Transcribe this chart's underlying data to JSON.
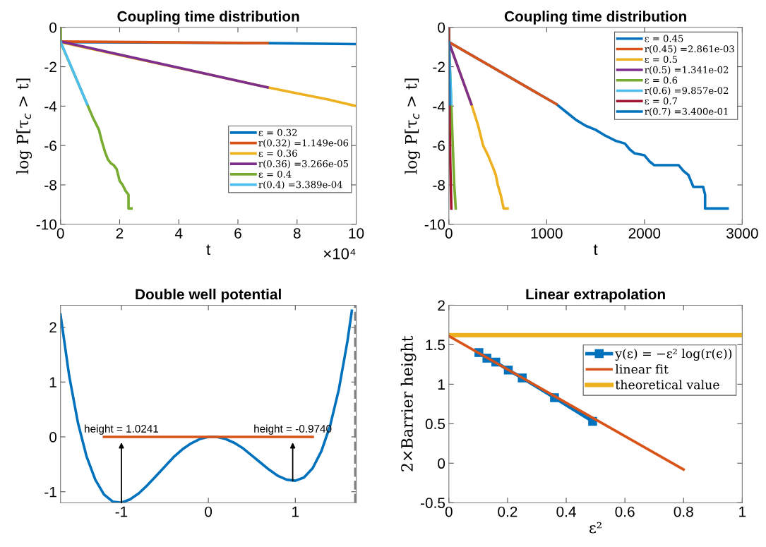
{
  "chart_data": [
    {
      "type": "line",
      "title": "Coupling time distribution",
      "xlabel": "t",
      "ylabel": "log P[τ$_{c}$ > t]",
      "annotations": [
        "×10⁴"
      ],
      "xlim": [
        0,
        10
      ],
      "xticks": [
        0,
        2,
        4,
        6,
        8,
        10
      ],
      "ylim": [
        -10,
        0
      ],
      "yticks": [
        -10,
        -8,
        -6,
        -4,
        -2,
        0
      ],
      "grid": false,
      "legend": "right",
      "line_style": "solid",
      "marker": "none",
      "series": [
        {
          "name": "ε = 0.32",
          "color": "#0072bd",
          "x": [
            0,
            0,
            7,
            10
          ],
          "values": [
            0,
            -0.75,
            -0.8,
            -0.85
          ]
        },
        {
          "name": "r(0.32) =1.149e-06",
          "color": "#d95319",
          "x": [
            0,
            7
          ],
          "values": [
            -0.72,
            -0.8
          ]
        },
        {
          "name": "ε = 0.36",
          "color": "#edb120",
          "x": [
            0,
            0,
            7,
            8,
            9,
            10
          ],
          "values": [
            0,
            -0.75,
            -3.05,
            -3.35,
            -3.65,
            -4.0
          ]
        },
        {
          "name": "r(0.36) =3.266e-05",
          "color": "#7e2f8e",
          "x": [
            0,
            7
          ],
          "values": [
            -0.72,
            -3.05
          ]
        },
        {
          "name": "ε = 0.4",
          "color": "#77ac30",
          "x": [
            0,
            0,
            0.9,
            1.1,
            1.3,
            1.4,
            1.5,
            1.6,
            1.7,
            1.8,
            1.9,
            2.0,
            2.1,
            2.2,
            2.3,
            2.3,
            2.4
          ],
          "values": [
            0,
            -0.75,
            -3.9,
            -4.6,
            -5.2,
            -5.8,
            -6.3,
            -6.7,
            -6.9,
            -7.0,
            -7.2,
            -7.8,
            -8.0,
            -8.3,
            -8.5,
            -9.2,
            -9.2
          ]
        },
        {
          "name": "r(0.4) =3.389e-04",
          "color": "#4dbeee",
          "x": [
            0,
            0.9
          ],
          "values": [
            -0.72,
            -3.9
          ]
        }
      ]
    },
    {
      "type": "line",
      "title": "Coupling time distribution",
      "xlabel": "t",
      "ylabel": "log P[τ$_{c}$ > t]",
      "xlim": [
        0,
        3000
      ],
      "xticks": [
        0,
        1000,
        2000,
        3000
      ],
      "ylim": [
        -10,
        0
      ],
      "yticks": [
        -10,
        -8,
        -6,
        -4,
        -2,
        0
      ],
      "grid": false,
      "legend": "top right",
      "line_style": "solid",
      "marker": "none",
      "series": [
        {
          "name": "ε = 0.45",
          "color": "#0072bd",
          "x": [
            0,
            0,
            1100,
            1200,
            1300,
            1400,
            1500,
            1600,
            1700,
            1800,
            1850,
            1900,
            2000,
            2050,
            2100,
            2350,
            2400,
            2450,
            2500,
            2600,
            2620,
            2620,
            2850
          ],
          "values": [
            0,
            -0.75,
            -3.9,
            -4.3,
            -4.7,
            -5.0,
            -5.2,
            -5.5,
            -5.75,
            -5.9,
            -6.2,
            -6.4,
            -6.5,
            -6.8,
            -7.0,
            -7.0,
            -7.3,
            -7.5,
            -8.1,
            -8.1,
            -8.5,
            -9.2,
            -9.2
          ]
        },
        {
          "name": "r(0.45) =2.861e-03",
          "color": "#d95319",
          "x": [
            0,
            1100
          ],
          "values": [
            -0.75,
            -3.9
          ]
        },
        {
          "name": "ε = 0.5",
          "color": "#edb120",
          "x": [
            0,
            0,
            230,
            300,
            350,
            400,
            450,
            480,
            500,
            530,
            560,
            600
          ],
          "values": [
            0,
            -0.75,
            -3.9,
            -5.0,
            -6.0,
            -6.5,
            -7.1,
            -7.5,
            -8.0,
            -8.5,
            -9.2,
            -9.2
          ]
        },
        {
          "name": "r(0.5) =1.341e-02",
          "color": "#7e2f8e",
          "x": [
            0,
            230
          ],
          "values": [
            -0.75,
            -3.9
          ]
        },
        {
          "name": "ε = 0.6",
          "color": "#77ac30",
          "x": [
            0,
            0,
            25,
            40,
            55,
            70
          ],
          "values": [
            0,
            -0.75,
            -3.9,
            -6.0,
            -8.0,
            -9.2
          ]
        },
        {
          "name": "r(0.6) =9.857e-02",
          "color": "#4dbeee",
          "x": [
            0,
            25
          ],
          "values": [
            -0.75,
            -3.9
          ]
        },
        {
          "name": "ε = 0.7",
          "color": "#a2142f",
          "x": [
            0,
            0,
            5,
            15,
            25
          ],
          "values": [
            0,
            -0.75,
            -3.9,
            -7.0,
            -9.2
          ]
        },
        {
          "name": "r(0.7) =3.400e-01",
          "color": "#0072bd",
          "x": [
            0,
            5
          ],
          "values": [
            -0.75,
            -3.9
          ]
        }
      ]
    },
    {
      "type": "line",
      "title": "Double well potential",
      "annotations": [
        {
          "text": "height = 1.0241",
          "x": -1,
          "y": -1.2
        },
        {
          "text": "height = -0.9740",
          "x": 0.97,
          "y": -0.8
        }
      ],
      "xlim": [
        -1.7,
        1.7
      ],
      "xticks": [
        -1,
        0,
        1
      ],
      "ylim": [
        -1.2,
        2.4
      ],
      "yticks": [
        -1,
        0,
        1,
        2
      ],
      "grid": false,
      "legend": false,
      "line_style": "solid",
      "marker": "none",
      "ref_lines": [
        {
          "axis": "x",
          "value": 1.69,
          "color": "#808080",
          "line_style": "dashed"
        }
      ],
      "series": [
        {
          "color": "#0072bd",
          "x": [
            -1.7,
            -1.6,
            -1.5,
            -1.4,
            -1.3,
            -1.2,
            -1.1,
            -1.0,
            -0.9,
            -0.8,
            -0.7,
            -0.6,
            -0.5,
            -0.4,
            -0.3,
            -0.2,
            -0.1,
            0,
            0.1,
            0.2,
            0.3,
            0.4,
            0.5,
            0.6,
            0.7,
            0.8,
            0.9,
            1.0,
            1.1,
            1.2,
            1.3,
            1.4,
            1.5,
            1.6,
            1.65
          ],
          "values": [
            2.23,
            1.11,
            0.26,
            -0.36,
            -0.78,
            -1.05,
            -1.18,
            -1.2,
            -1.14,
            -1.03,
            -0.88,
            -0.71,
            -0.54,
            -0.37,
            -0.23,
            -0.12,
            -0.04,
            0,
            0,
            -0.04,
            -0.11,
            -0.21,
            -0.34,
            -0.47,
            -0.6,
            -0.71,
            -0.78,
            -0.8,
            -0.74,
            -0.57,
            -0.26,
            0.2,
            0.86,
            1.75,
            2.3
          ]
        },
        {
          "color": "#d95319",
          "x": [
            -1.2,
            1.2
          ],
          "values": [
            0,
            0
          ]
        }
      ]
    },
    {
      "type": "line",
      "title": "Linear extrapolation",
      "xlabel": "ε²",
      "ylabel": "2×Barrier height",
      "xlim": [
        0,
        1
      ],
      "xticks": [
        0,
        0.2,
        0.4,
        0.6,
        0.8,
        1
      ],
      "ylim": [
        -0.5,
        2
      ],
      "yticks": [
        -0.5,
        0,
        0.5,
        1,
        1.5,
        2
      ],
      "grid": false,
      "legend": "top right",
      "line_style": "solid",
      "series": [
        {
          "name": "y(ε) = −ε² log(r(ϵ))",
          "color": "#0072bd",
          "marker": "square",
          "x": [
            0.1024,
            0.1296,
            0.16,
            0.2025,
            0.25,
            0.36,
            0.49
          ],
          "values": [
            1.4,
            1.33,
            1.28,
            1.18,
            1.08,
            0.83,
            0.53
          ]
        },
        {
          "name": "linear fit",
          "color": "#d95319",
          "marker": "none",
          "x": [
            0,
            0.8
          ],
          "values": [
            1.61,
            -0.08
          ]
        },
        {
          "name": "theoretical value",
          "color": "#edb120",
          "marker": "none",
          "x": [
            0,
            1
          ],
          "values": [
            1.62,
            1.62
          ]
        }
      ]
    }
  ]
}
